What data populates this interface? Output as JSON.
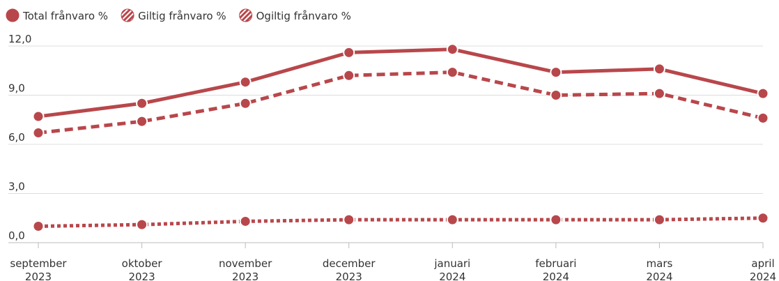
{
  "chart_data": {
    "type": "line",
    "categories": [
      [
        "september",
        "2023"
      ],
      [
        "oktober",
        "2023"
      ],
      [
        "november",
        "2023"
      ],
      [
        "december",
        "2023"
      ],
      [
        "januari",
        "2024"
      ],
      [
        "februari",
        "2024"
      ],
      [
        "mars",
        "2024"
      ],
      [
        "april",
        "2024"
      ]
    ],
    "series": [
      {
        "name": "Total frånvaro %",
        "color": "#b8474b",
        "dash": "solid",
        "values": [
          7.7,
          8.5,
          9.8,
          11.6,
          11.8,
          10.4,
          10.6,
          9.1
        ]
      },
      {
        "name": "Giltig frånvaro %",
        "color": "#b8474b",
        "dash": "dashed",
        "values": [
          6.7,
          7.4,
          8.5,
          10.2,
          10.4,
          9.0,
          9.1,
          7.6
        ]
      },
      {
        "name": "Ogiltig frånvaro %",
        "color": "#b8474b",
        "dash": "dotted",
        "values": [
          1.0,
          1.1,
          1.3,
          1.4,
          1.4,
          1.4,
          1.4,
          1.5
        ]
      }
    ],
    "ylim": [
      0,
      12
    ],
    "yticks": [
      {
        "value": 0,
        "label": "0,0"
      },
      {
        "value": 3,
        "label": "3,0"
      },
      {
        "value": 6,
        "label": "6,0"
      },
      {
        "value": 9,
        "label": "9,0"
      },
      {
        "value": 12,
        "label": "12,0"
      }
    ],
    "grid": true,
    "legend": "top-left"
  }
}
